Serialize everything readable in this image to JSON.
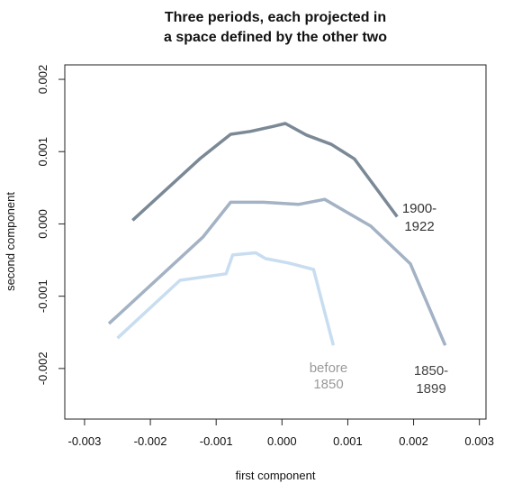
{
  "chart_data": {
    "type": "line",
    "title": [
      "Three periods, each projected in",
      "a space defined by the other two"
    ],
    "xlabel": "first component",
    "ylabel": "second component",
    "xlim": [
      -0.0033,
      0.0031
    ],
    "ylim": [
      -0.0027,
      0.0022
    ],
    "xticks": [
      -0.003,
      -0.002,
      -0.001,
      0.0,
      0.001,
      0.002,
      0.003
    ],
    "xtick_labels": [
      "-0.003",
      "-0.002",
      "-0.001",
      "0.000",
      "0.001",
      "0.002",
      "0.003"
    ],
    "yticks": [
      -0.002,
      -0.001,
      0.0,
      0.001,
      0.002
    ],
    "ytick_labels": [
      "-0.002",
      "-0.001",
      "0.000",
      "0.001",
      "0.002"
    ],
    "grid": false,
    "series": [
      {
        "name_lines": [
          "1900-",
          "1922"
        ],
        "color": "#7b8996",
        "label_color": "#333333",
        "x": [
          -0.00227,
          -0.00125,
          -0.00078,
          -0.00048,
          -0.00013,
          5e-05,
          0.00037,
          0.00075,
          0.0011,
          0.00175
        ],
        "y": [
          5e-05,
          0.0009,
          0.00124,
          0.00128,
          0.00135,
          0.00139,
          0.00123,
          0.0011,
          0.0009,
          0.0001
        ]
      },
      {
        "name_lines": [
          "1850-",
          "1899"
        ],
        "color": "#a3b2c4",
        "label_color": "#444444",
        "x": [
          -0.00263,
          -0.0012,
          -0.00078,
          -0.00028,
          0.00025,
          0.00065,
          0.00095,
          0.00135,
          0.00195,
          0.00248
        ],
        "y": [
          -0.00138,
          -0.00018,
          0.0003,
          0.0003,
          0.00027,
          0.00034,
          0.00018,
          -3e-05,
          -0.00055,
          -0.00168
        ]
      },
      {
        "name_lines": [
          "before",
          "1850"
        ],
        "color": "#c8ddf0",
        "label_color": "#9a9a9a",
        "x": [
          -0.0025,
          -0.00155,
          -0.00085,
          -0.00075,
          -0.0004,
          -0.00025,
          0.0001,
          0.00048,
          0.00078
        ],
        "y": [
          -0.00158,
          -0.00078,
          -0.00069,
          -0.00043,
          -0.0004,
          -0.00048,
          -0.00054,
          -0.00063,
          -0.00168
        ]
      }
    ]
  }
}
